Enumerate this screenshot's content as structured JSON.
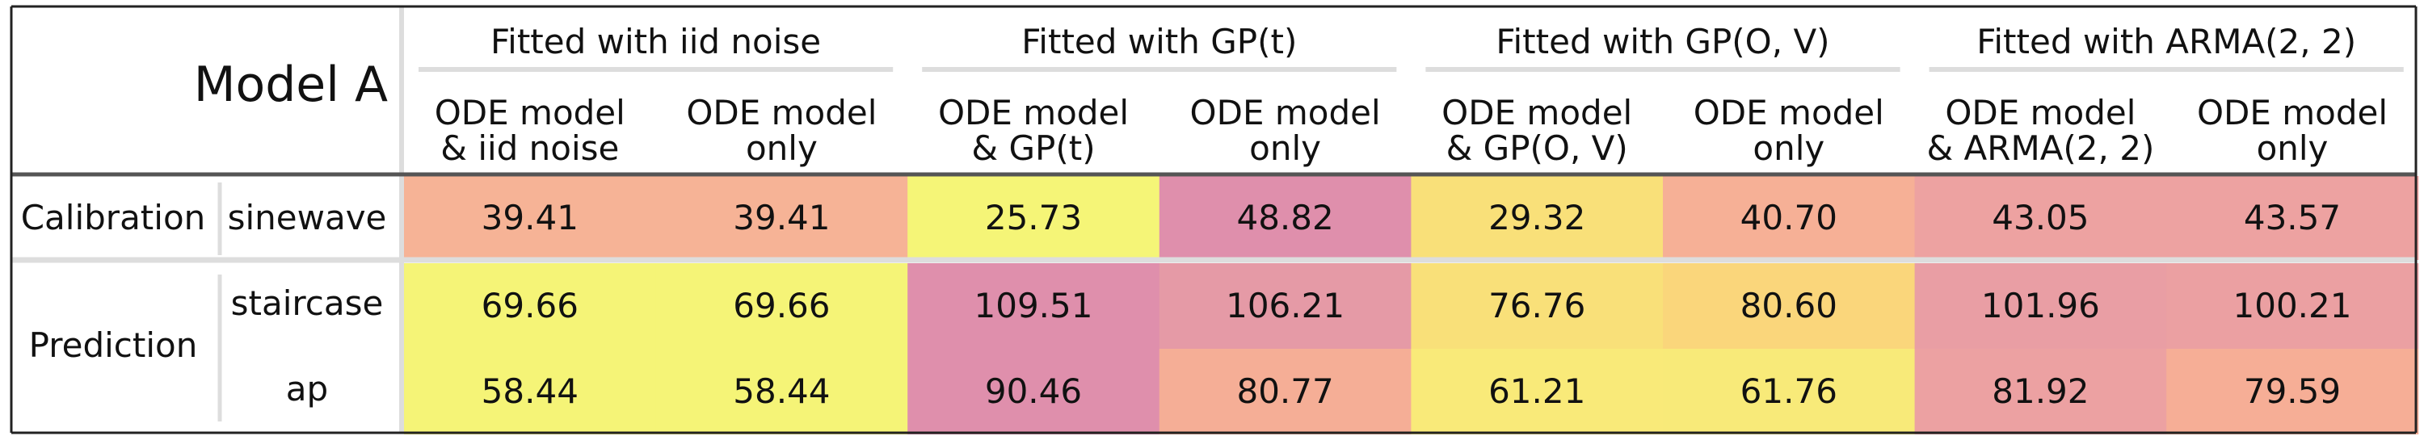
{
  "chart_data": {
    "type": "table",
    "title": "Model A",
    "groups": [
      "Fitted with iid noise",
      "Fitted with GP(t)",
      "Fitted with GP(O, V)",
      "Fitted with ARMA(2, 2)"
    ],
    "columns": [
      [
        "ODE model",
        "& iid noise"
      ],
      [
        "ODE model",
        "only"
      ],
      [
        "ODE model",
        "& GP(t)"
      ],
      [
        "ODE model",
        "only"
      ],
      [
        "ODE model",
        "& GP(O, V)"
      ],
      [
        "ODE model",
        "only"
      ],
      [
        "ODE model",
        "& ARMA(2, 2)"
      ],
      [
        "ODE model",
        "only"
      ]
    ],
    "row_groups": [
      {
        "label": "Calibration",
        "rows": [
          "sinewave"
        ]
      },
      {
        "label": "Prediction",
        "rows": [
          "staircase",
          "ap"
        ]
      }
    ],
    "rows": [
      {
        "group": "Calibration",
        "name": "sinewave",
        "values": [
          "39.41",
          "39.41",
          "25.73",
          "48.82",
          "29.32",
          "40.70",
          "43.05",
          "43.57"
        ],
        "colors": [
          "#f6b396",
          "#f6b396",
          "#f5f577",
          "#df8fac",
          "#f9e079",
          "#f6b096",
          "#eda2a1",
          "#eda2a1"
        ]
      },
      {
        "group": "Prediction",
        "name": "staircase",
        "values": [
          "69.66",
          "69.66",
          "109.51",
          "106.21",
          "76.76",
          "80.60",
          "101.96",
          "100.21"
        ],
        "colors": [
          "#f5f477",
          "#f5f477",
          "#df8fac",
          "#e59aa6",
          "#f9e079",
          "#fad67b",
          "#e99ea4",
          "#eba0a2"
        ]
      },
      {
        "group": "Prediction",
        "name": "ap",
        "values": [
          "58.44",
          "58.44",
          "90.46",
          "80.77",
          "61.21",
          "61.76",
          "81.92",
          "79.59"
        ],
        "colors": [
          "#f5f477",
          "#f5f477",
          "#df8fac",
          "#f5ae96",
          "#f9ea79",
          "#f8ea79",
          "#eca1a2",
          "#f6ae96"
        ]
      }
    ]
  }
}
